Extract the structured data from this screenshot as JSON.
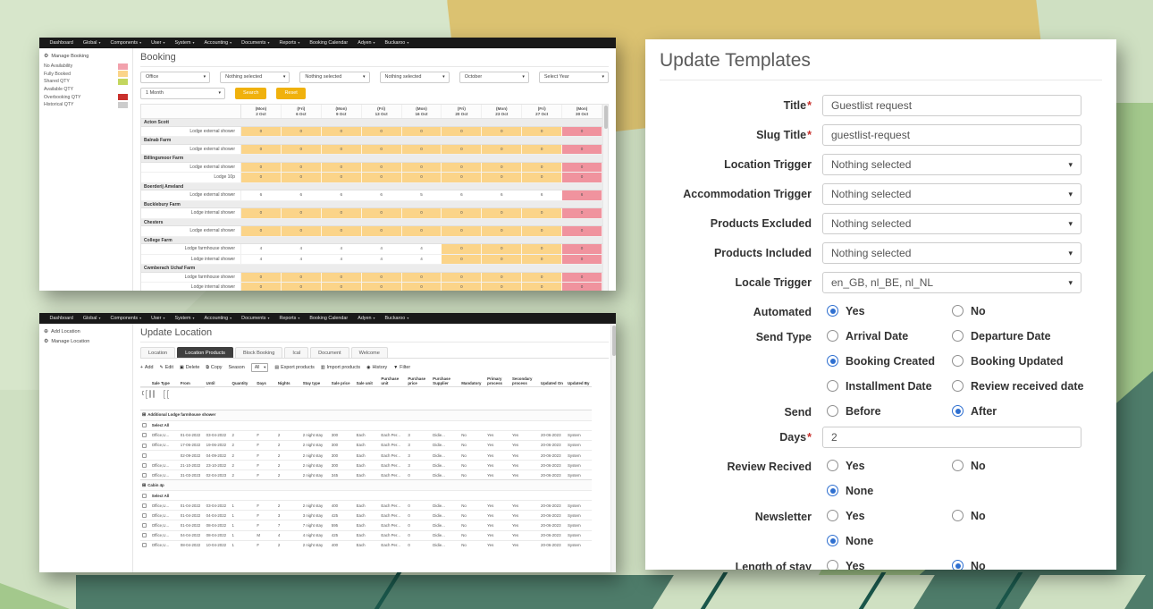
{
  "navbar": {
    "items": [
      {
        "label": "Dashboard",
        "caret": false
      },
      {
        "label": "Global",
        "caret": true
      },
      {
        "label": "Components",
        "caret": true
      },
      {
        "label": "User",
        "caret": true
      },
      {
        "label": "System",
        "caret": true
      },
      {
        "label": "Accounting",
        "caret": true
      },
      {
        "label": "Documents",
        "caret": true
      },
      {
        "label": "Reports",
        "caret": true
      },
      {
        "label": "Booking Calendar",
        "caret": false
      },
      {
        "label": "Adyen",
        "caret": true
      },
      {
        "label": "Buckaroo",
        "caret": true
      }
    ]
  },
  "booking_window": {
    "sidebar": {
      "manage": "Manage Booking",
      "legend": [
        {
          "label": "No Availability",
          "color": "#f2a1ac"
        },
        {
          "label": "Fully Booked",
          "color": "#fbd489"
        },
        {
          "label": "Shared QTY",
          "color": "#c3d65e"
        },
        {
          "label": "Available QTY",
          "color": "#ffffff"
        },
        {
          "label": "Overbooking QTY",
          "color": "#c9302c"
        },
        {
          "label": "Historical QTY",
          "color": "#cccccc"
        }
      ]
    },
    "title": "Booking",
    "filters": {
      "row1": [
        "Office",
        "Nothing selected",
        "Nothing selected",
        "Nothing selected",
        "October",
        "Select Year"
      ],
      "period": "1 Month",
      "search": "Search",
      "reset": "Reset",
      "button_color": "#f0b10c"
    },
    "table": {
      "cell_colors": {
        "o": "#fbd489",
        "r": "#f0939e",
        "w": "#ffffff"
      },
      "date_headers": [
        {
          "day": "(Mon)",
          "date": "2 Oct"
        },
        {
          "day": "(Fri)",
          "date": "6 Oct"
        },
        {
          "day": "(Mon)",
          "date": "9 Oct"
        },
        {
          "day": "(Fri)",
          "date": "13 Oct"
        },
        {
          "day": "(Mon)",
          "date": "16 Oct"
        },
        {
          "day": "(Fri)",
          "date": "20 Oct"
        },
        {
          "day": "(Mon)",
          "date": "23 Oct"
        },
        {
          "day": "(Fri)",
          "date": "27 Oct"
        },
        {
          "day": "(Mon)",
          "date": "30 Oct"
        }
      ],
      "rows": [
        {
          "type": "group",
          "name": "Acton Scott"
        },
        {
          "type": "item",
          "name": "Lodge external shower",
          "values": [
            0,
            0,
            0,
            0,
            0,
            0,
            0,
            0,
            0
          ],
          "colors": [
            "o",
            "o",
            "o",
            "o",
            "o",
            "o",
            "o",
            "o",
            "r"
          ]
        },
        {
          "type": "group",
          "name": "Balnab Farm"
        },
        {
          "type": "item",
          "name": "Lodge external shower",
          "values": [
            0,
            0,
            0,
            0,
            0,
            0,
            0,
            0,
            0
          ],
          "colors": [
            "o",
            "o",
            "o",
            "o",
            "o",
            "o",
            "o",
            "o",
            "r"
          ]
        },
        {
          "type": "group",
          "name": "Billingsmoor Farm"
        },
        {
          "type": "item",
          "name": "Lodge external shower",
          "values": [
            0,
            0,
            0,
            0,
            0,
            0,
            0,
            0,
            0
          ],
          "colors": [
            "o",
            "o",
            "o",
            "o",
            "o",
            "o",
            "o",
            "o",
            "r"
          ]
        },
        {
          "type": "item",
          "name": "Lodge 10p",
          "values": [
            0,
            0,
            0,
            0,
            0,
            0,
            0,
            0,
            0
          ],
          "colors": [
            "o",
            "o",
            "o",
            "o",
            "o",
            "o",
            "o",
            "o",
            "r"
          ]
        },
        {
          "type": "group",
          "name": "Boerderij Ameland"
        },
        {
          "type": "item",
          "name": "Lodge external shower",
          "values": [
            6,
            6,
            6,
            6,
            5,
            6,
            6,
            6,
            6
          ],
          "colors": [
            "w",
            "w",
            "w",
            "w",
            "w",
            "w",
            "w",
            "w",
            "r"
          ]
        },
        {
          "type": "group",
          "name": "Bucklebury Farm"
        },
        {
          "type": "item",
          "name": "Lodge internal shower",
          "values": [
            0,
            0,
            0,
            0,
            0,
            0,
            0,
            0,
            0
          ],
          "colors": [
            "o",
            "o",
            "o",
            "o",
            "o",
            "o",
            "o",
            "o",
            "r"
          ]
        },
        {
          "type": "group",
          "name": "Chesters"
        },
        {
          "type": "item",
          "name": "Lodge external shower",
          "values": [
            0,
            0,
            0,
            0,
            0,
            0,
            0,
            0,
            0
          ],
          "colors": [
            "o",
            "o",
            "o",
            "o",
            "o",
            "o",
            "o",
            "o",
            "r"
          ]
        },
        {
          "type": "group",
          "name": "College Farm"
        },
        {
          "type": "item",
          "name": "Lodge farmhouse shower",
          "values": [
            4,
            4,
            4,
            4,
            4,
            0,
            0,
            0,
            0
          ],
          "colors": [
            "w",
            "w",
            "w",
            "w",
            "w",
            "o",
            "o",
            "o",
            "r"
          ]
        },
        {
          "type": "item",
          "name": "Lodge internal shower",
          "values": [
            4,
            4,
            4,
            4,
            4,
            0,
            0,
            0,
            0
          ],
          "colors": [
            "w",
            "w",
            "w",
            "w",
            "w",
            "o",
            "o",
            "o",
            "r"
          ]
        },
        {
          "type": "group",
          "name": "Cwmberach Uchaf Farm"
        },
        {
          "type": "item",
          "name": "Lodge farmhouse shower",
          "values": [
            0,
            0,
            0,
            0,
            0,
            0,
            0,
            0,
            0
          ],
          "colors": [
            "o",
            "o",
            "o",
            "o",
            "o",
            "o",
            "o",
            "o",
            "r"
          ]
        },
        {
          "type": "item",
          "name": "Lodge internal shower",
          "values": [
            0,
            0,
            0,
            0,
            0,
            0,
            0,
            0,
            0
          ],
          "colors": [
            "o",
            "o",
            "o",
            "o",
            "o",
            "o",
            "o",
            "o",
            "r"
          ]
        }
      ]
    }
  },
  "location_window": {
    "sidebar": [
      {
        "icon": "plus-circle-icon",
        "label": "Add Location"
      },
      {
        "icon": "gear-icon",
        "label": "Manage Location"
      }
    ],
    "title": "Update Location",
    "tabs": [
      {
        "label": "Location",
        "active": false
      },
      {
        "label": "Location Products",
        "active": true
      },
      {
        "label": "Block Booking",
        "active": false
      },
      {
        "label": "Ical",
        "active": false
      },
      {
        "label": "Document",
        "active": false
      },
      {
        "label": "Welcome",
        "active": false
      }
    ],
    "toolbar": [
      {
        "icon": "plus-icon",
        "label": "Add"
      },
      {
        "icon": "pencil-icon",
        "label": "Edit"
      },
      {
        "icon": "trash-icon",
        "label": "Delete"
      },
      {
        "icon": "copy-icon",
        "label": "Copy"
      },
      {
        "icon": "",
        "label": "Season"
      },
      {
        "type": "select",
        "value": "All"
      },
      {
        "icon": "export-icon",
        "label": "Export products"
      },
      {
        "icon": "import-icon",
        "label": "Import products"
      },
      {
        "icon": "history-icon",
        "label": "History"
      },
      {
        "icon": "filter-icon",
        "label": "Filter"
      }
    ],
    "columns": [
      "Sale Type",
      "From",
      "Until",
      "Quantity",
      "Days",
      "Nights",
      "Stay type",
      "Sale price",
      "Sale unit",
      "Purchase unit",
      "Purchase price",
      "Purchase Supplier",
      "Mandatory",
      "Primary process",
      "Secondary process",
      "Updated On",
      "Updated By"
    ],
    "filter_defaults": {
      "sale_type": "-",
      "nights": "-",
      "stay_type": "-"
    },
    "select_all": "Select All",
    "groups": [
      {
        "name": "Additional Lodge farmhouse shower",
        "rows": [
          [
            "Office,U...",
            "01-04-2022",
            "03-04-2022",
            "2",
            "F",
            "2",
            "2 night stay",
            "300",
            "Each",
            "Each Per...",
            "3",
            "Didie...",
            "No",
            "Yes",
            "Yes",
            "20-06-2023",
            "System"
          ],
          [
            "Office,U...",
            "17-06-2022",
            "19-06-2022",
            "2",
            "F",
            "2",
            "2 night stay",
            "300",
            "Each",
            "Each Per...",
            "3",
            "Didie...",
            "No",
            "Yes",
            "Yes",
            "20-06-2023",
            "System"
          ],
          [
            "",
            "02-09-2022",
            "04-09-2022",
            "2",
            "F",
            "2",
            "2 night stay",
            "300",
            "Each",
            "Each Per...",
            "3",
            "Didie...",
            "No",
            "Yes",
            "Yes",
            "20-06-2023",
            "System"
          ],
          [
            "Office,U...",
            "21-10-2022",
            "23-10-2022",
            "2",
            "F",
            "2",
            "2 night stay",
            "300",
            "Each",
            "Each Per...",
            "3",
            "Didie...",
            "No",
            "Yes",
            "Yes",
            "20-06-2023",
            "System"
          ],
          [
            "Office,U...",
            "31-03-2023",
            "02-04-2023",
            "2",
            "F",
            "2",
            "2 night stay",
            "345",
            "Each",
            "Each Per...",
            "0",
            "Didie...",
            "No",
            "Yes",
            "Yes",
            "20-06-2023",
            "System"
          ]
        ]
      },
      {
        "name": "Cabin 4p",
        "rows": [
          [
            "Office,U...",
            "01-04-2022",
            "03-04-2022",
            "1",
            "F",
            "2",
            "2 night stay",
            "400",
            "Each",
            "Each Per...",
            "0",
            "Didie...",
            "No",
            "Yes",
            "Yes",
            "20-06-2023",
            "System"
          ],
          [
            "Office,U...",
            "01-04-2022",
            "04-04-2022",
            "1",
            "F",
            "3",
            "3 night stay",
            "425",
            "Each",
            "Each Per...",
            "0",
            "Didie...",
            "No",
            "Yes",
            "Yes",
            "20-06-2023",
            "System"
          ],
          [
            "Office,U...",
            "01-04-2022",
            "08-04-2022",
            "1",
            "F",
            "7",
            "7 night stay",
            "595",
            "Each",
            "Each Per...",
            "0",
            "Didie...",
            "No",
            "Yes",
            "Yes",
            "20-06-2023",
            "System"
          ],
          [
            "Office,U...",
            "04-04-2022",
            "08-04-2022",
            "1",
            "M",
            "4",
            "4 night stay",
            "425",
            "Each",
            "Each Per...",
            "0",
            "Didie...",
            "No",
            "Yes",
            "Yes",
            "20-06-2023",
            "System"
          ],
          [
            "Office,U...",
            "08-04-2022",
            "10-04-2022",
            "1",
            "F",
            "2",
            "2 night stay",
            "400",
            "Each",
            "Each Per...",
            "0",
            "Didie...",
            "No",
            "Yes",
            "Yes",
            "20-06-2023",
            "System"
          ]
        ]
      }
    ]
  },
  "templates_panel": {
    "title": "Update Templates",
    "accent_radio_color": "#2e6fd0",
    "fields": [
      {
        "type": "text",
        "label": "Title",
        "required": true,
        "value": "Guestlist request"
      },
      {
        "type": "text",
        "label": "Slug Title",
        "required": true,
        "value": "guestlist-request"
      },
      {
        "type": "select",
        "label": "Location Trigger",
        "value": "Nothing selected"
      },
      {
        "type": "select",
        "label": "Accommodation Trigger",
        "value": "Nothing selected"
      },
      {
        "type": "select",
        "label": "Products Excluded",
        "value": "Nothing selected"
      },
      {
        "type": "select",
        "label": "Products Included",
        "value": "Nothing selected"
      },
      {
        "type": "select",
        "label": "Locale Trigger",
        "value": "en_GB, nl_BE, nl_NL"
      },
      {
        "type": "radio",
        "label": "Automated",
        "options": [
          {
            "t": "Yes",
            "sel": true
          },
          {
            "t": "No",
            "sel": false
          }
        ]
      },
      {
        "type": "radio",
        "label": "Send Type",
        "options": [
          {
            "t": "Arrival Date",
            "sel": false
          },
          {
            "t": "Departure Date",
            "sel": false
          },
          {
            "t": "Booking Created",
            "sel": true
          },
          {
            "t": "Booking Updated",
            "sel": false
          },
          {
            "t": "Installment Date",
            "sel": false
          },
          {
            "t": "Review received date",
            "sel": false
          }
        ]
      },
      {
        "type": "radio",
        "label": "Send",
        "options": [
          {
            "t": "Before",
            "sel": false
          },
          {
            "t": "After",
            "sel": true
          }
        ]
      },
      {
        "type": "text",
        "label": "Days",
        "required": true,
        "value": "2"
      },
      {
        "type": "radio",
        "label": "Review Recived",
        "options": [
          {
            "t": "Yes",
            "sel": false
          },
          {
            "t": "No",
            "sel": false
          },
          {
            "t": "None",
            "sel": true
          }
        ]
      },
      {
        "type": "radio",
        "label": "Newsletter",
        "options": [
          {
            "t": "Yes",
            "sel": false
          },
          {
            "t": "No",
            "sel": false
          },
          {
            "t": "None",
            "sel": true
          }
        ]
      },
      {
        "type": "radio",
        "label": "Length of stay",
        "options": [
          {
            "t": "Yes",
            "sel": false
          },
          {
            "t": "No",
            "sel": true
          }
        ]
      }
    ]
  }
}
